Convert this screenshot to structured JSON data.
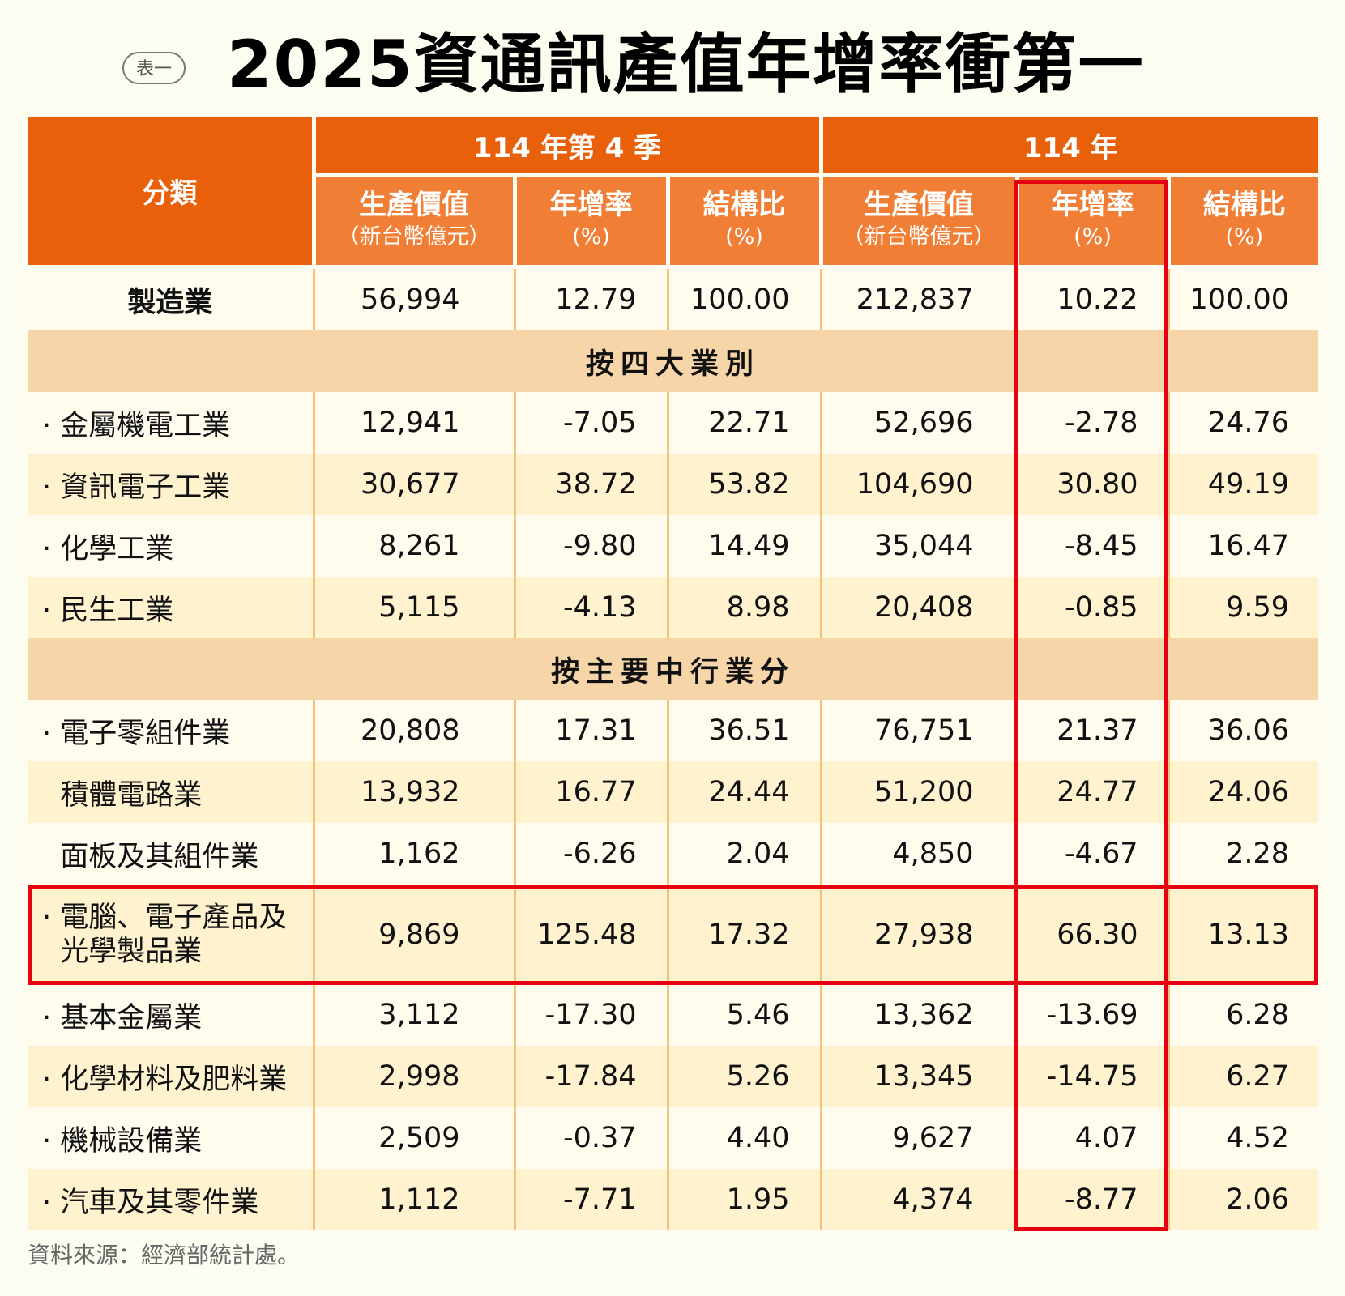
{
  "badge": "表一",
  "title": "2025資通訊產值年增率衝第一",
  "header": {
    "category": "分類",
    "group_q4": "114 年第 4 季",
    "group_year": "114 年",
    "columns": [
      {
        "label": "生產價值",
        "unit": "（新台幣億元）"
      },
      {
        "label": "年增率",
        "unit": "(%)"
      },
      {
        "label": "結構比",
        "unit": "(%)"
      },
      {
        "label": "生產價值",
        "unit": "（新台幣億元）"
      },
      {
        "label": "年增率",
        "unit": "(%)"
      },
      {
        "label": "結構比",
        "unit": "(%)"
      }
    ]
  },
  "rows": [
    {
      "type": "total",
      "label": "製造業",
      "values": [
        "56,994",
        "12.79",
        "100.00",
        "212,837",
        "10.22",
        "100.00"
      ]
    },
    {
      "type": "section",
      "label": "按四大業別"
    },
    {
      "type": "data",
      "label": "· 金屬機電工業",
      "values": [
        "12,941",
        "-7.05",
        "22.71",
        "52,696",
        "-2.78",
        "24.76"
      ]
    },
    {
      "type": "data",
      "label": "· 資訊電子工業",
      "values": [
        "30,677",
        "38.72",
        "53.82",
        "104,690",
        "30.80",
        "49.19"
      ]
    },
    {
      "type": "data",
      "label": "· 化學工業",
      "values": [
        "8,261",
        "-9.80",
        "14.49",
        "35,044",
        "-8.45",
        "16.47"
      ]
    },
    {
      "type": "data",
      "label": "· 民生工業",
      "values": [
        "5,115",
        "-4.13",
        "8.98",
        "20,408",
        "-0.85",
        "9.59"
      ]
    },
    {
      "type": "section",
      "label": "按主要中行業分"
    },
    {
      "type": "data",
      "label": "· 電子零組件業",
      "values": [
        "20,808",
        "17.31",
        "36.51",
        "76,751",
        "21.37",
        "36.06"
      ]
    },
    {
      "type": "data",
      "label": "  積體電路業",
      "values": [
        "13,932",
        "16.77",
        "24.44",
        "51,200",
        "24.77",
        "24.06"
      ]
    },
    {
      "type": "data",
      "label": "  面板及其組件業",
      "values": [
        "1,162",
        "-6.26",
        "2.04",
        "4,850",
        "-4.67",
        "2.28"
      ]
    },
    {
      "type": "data",
      "tall": true,
      "label": "· 電腦、電子產品及",
      "label2": "  光學製品業",
      "values": [
        "9,869",
        "125.48",
        "17.32",
        "27,938",
        "66.30",
        "13.13"
      ]
    },
    {
      "type": "data",
      "label": "· 基本金屬業",
      "values": [
        "3,112",
        "-17.30",
        "5.46",
        "13,362",
        "-13.69",
        "6.28"
      ]
    },
    {
      "type": "data",
      "label": "· 化學材料及肥料業",
      "values": [
        "2,998",
        "-17.84",
        "5.26",
        "13,345",
        "-14.75",
        "6.27"
      ]
    },
    {
      "type": "data",
      "label": "· 機械設備業",
      "values": [
        "2,509",
        "-0.37",
        "4.40",
        "9,627",
        "4.07",
        "4.52"
      ]
    },
    {
      "type": "data",
      "label": "· 汽車及其零件業",
      "values": [
        "1,112",
        "-7.71",
        "1.95",
        "4,374",
        "-8.77",
        "2.06"
      ]
    }
  ],
  "source": "資料來源：經濟部統計處。",
  "colors": {
    "header": "#e8600a",
    "subheader": "#f07e34",
    "section": "#f6d6a8",
    "highlight": "#e60012"
  }
}
